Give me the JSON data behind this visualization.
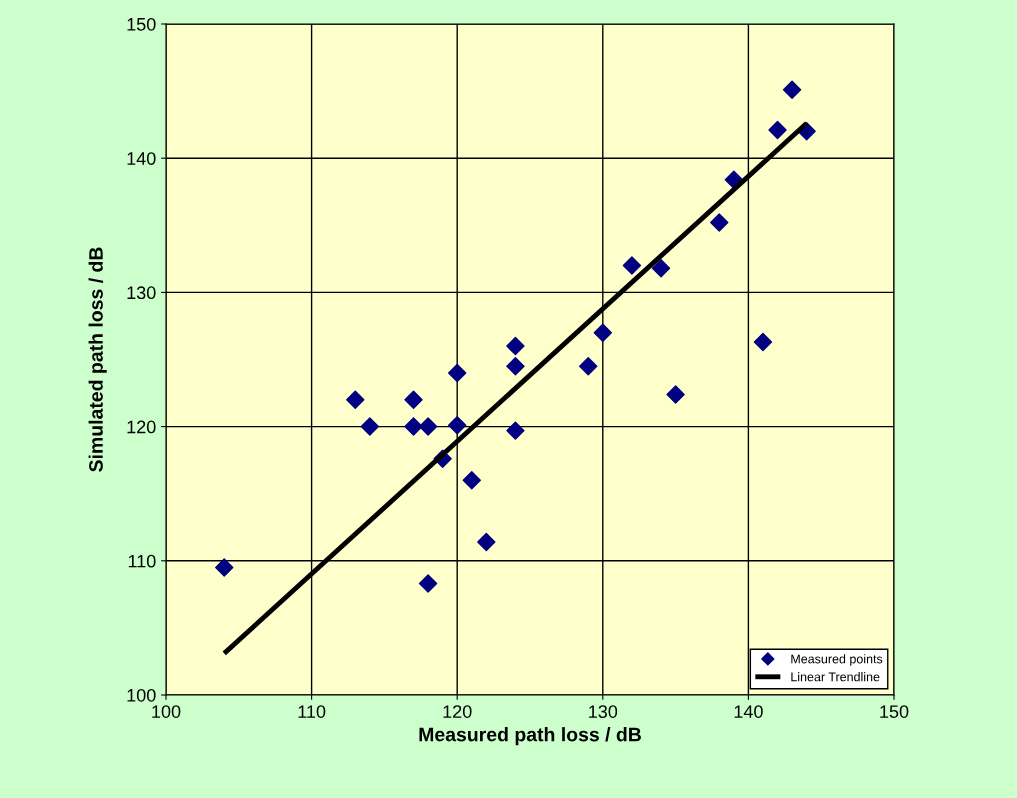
{
  "chart_data": {
    "type": "scatter",
    "xlabel": "Measured path loss / dB",
    "ylabel": "Simulated path loss / dB",
    "xlim": [
      100,
      150
    ],
    "xticks": [
      100,
      110,
      120,
      130,
      140,
      150
    ],
    "ylim": [
      100,
      150
    ],
    "yticks": [
      100,
      110,
      120,
      130,
      140,
      150
    ],
    "grid": true,
    "legend": "bottom right",
    "series": [
      {
        "name": "Measured points",
        "color": "#000080",
        "marker": "diamond",
        "x": [
          104,
          113,
          114,
          117,
          117,
          118,
          118,
          119,
          120,
          120,
          121,
          122,
          124,
          124,
          124,
          129,
          130,
          132,
          134,
          135,
          138,
          139,
          141,
          142,
          143,
          144
        ],
        "values": [
          109.5,
          122,
          120,
          122,
          120,
          120,
          108.3,
          117.6,
          124,
          120.1,
          116,
          111.4,
          126,
          124.5,
          119.7,
          124.5,
          127,
          132,
          131.8,
          122.4,
          135.2,
          138.4,
          126.3,
          142.1,
          145.1,
          142
        ]
      },
      {
        "name": "Linear Trendline",
        "type": "line",
        "color": "#000000",
        "marker": "none",
        "line_style": "solid",
        "x": [
          104,
          144
        ],
        "values": [
          103.1,
          142.6
        ]
      }
    ]
  }
}
